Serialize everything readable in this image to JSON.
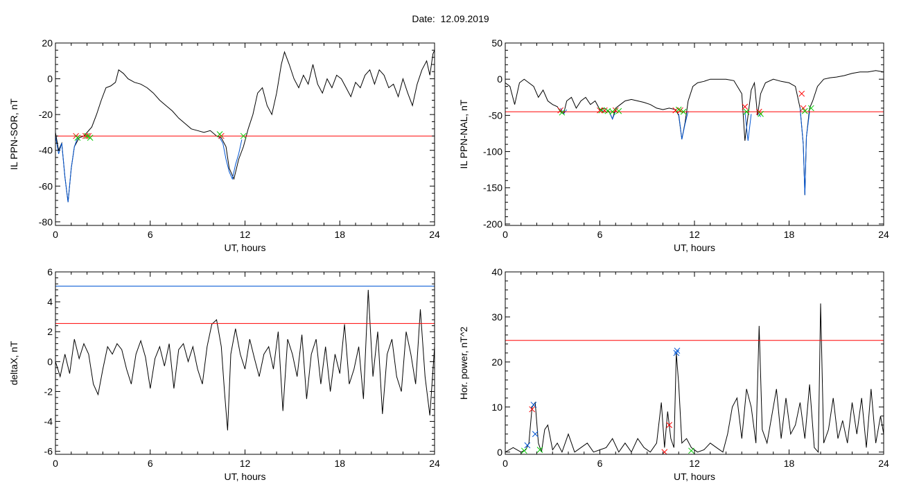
{
  "figure": {
    "title": "Date:  12.09.2019"
  },
  "chart_data": [
    {
      "type": "line",
      "ylabel": "IL PPN-SOR, nT",
      "xlabel": "UT, hours",
      "xlim": [
        0,
        24
      ],
      "ylim": [
        -82,
        20
      ],
      "xticks": [
        0,
        6,
        12,
        18,
        24
      ],
      "yticks": [
        -80,
        -60,
        -40,
        -20,
        0,
        20
      ],
      "series": [
        {
          "color": "#000000",
          "x": [
            0,
            0.2,
            0.4,
            0.6,
            0.8,
            1.0,
            1.2,
            1.5,
            1.8,
            2.0,
            2.3,
            2.6,
            2.9,
            3.2,
            3.5,
            3.8,
            4.0,
            4.3,
            4.6,
            5.0,
            5.4,
            5.8,
            6.2,
            6.6,
            7.0,
            7.4,
            7.8,
            8.2,
            8.6,
            9.0,
            9.4,
            9.8,
            10.2,
            10.5,
            10.8,
            11.0,
            11.3,
            11.6,
            11.9,
            12.2,
            12.5,
            12.8,
            13.1,
            13.4,
            13.7,
            14.0,
            14.3,
            14.5,
            14.8,
            15.1,
            15.4,
            15.7,
            16.0,
            16.3,
            16.6,
            16.9,
            17.2,
            17.5,
            17.8,
            18.1,
            18.4,
            18.7,
            19.0,
            19.3,
            19.6,
            19.9,
            20.2,
            20.5,
            20.8,
            21.1,
            21.4,
            21.7,
            22.0,
            22.3,
            22.6,
            22.9,
            23.2,
            23.5,
            23.7,
            23.9,
            24.0
          ],
          "y": [
            -30,
            -40,
            -36,
            -55,
            -69,
            -50,
            -38,
            -33,
            -32,
            -30,
            -27,
            -20,
            -12,
            -5,
            -4,
            -2,
            5,
            3,
            0,
            -2,
            -3,
            -5,
            -8,
            -12,
            -15,
            -18,
            -22,
            -25,
            -28,
            -29,
            -30,
            -29,
            -32,
            -33,
            -38,
            -50,
            -56,
            -45,
            -38,
            -28,
            -20,
            -8,
            -5,
            -15,
            -20,
            -8,
            8,
            15,
            8,
            0,
            -5,
            2,
            -3,
            8,
            -3,
            -8,
            0,
            -5,
            2,
            0,
            -5,
            -10,
            -2,
            -5,
            2,
            5,
            -3,
            5,
            2,
            -5,
            -3,
            -10,
            0,
            -8,
            -15,
            -3,
            5,
            10,
            2,
            14,
            16
          ]
        },
        {
          "color": "#0055d4",
          "x": [
            0,
            0.2,
            0.4,
            0.6,
            0.8,
            1.0,
            1.2,
            1.4
          ],
          "y": [
            -32,
            -42,
            -36,
            -55,
            -69,
            -50,
            -38,
            -33
          ]
        },
        {
          "color": "#0055d4",
          "x": [
            10.4,
            10.6,
            10.8,
            11.0,
            11.2,
            11.4,
            11.6,
            11.8
          ],
          "y": [
            -33,
            -36,
            -45,
            -52,
            -56,
            -48,
            -42,
            -34
          ]
        },
        {
          "color": "#ff0000",
          "x": [
            0,
            24
          ],
          "y": [
            -32,
            -32
          ]
        }
      ],
      "markers": [
        {
          "color": "#ff0000",
          "x": [
            1.3,
            1.9,
            2.1,
            10.5
          ],
          "y": [
            -32,
            -32,
            -32,
            -32
          ]
        },
        {
          "color": "#00cc00",
          "x": [
            1.4,
            2.0,
            2.2,
            10.4,
            11.9
          ],
          "y": [
            -33,
            -32,
            -33,
            -31,
            -32
          ]
        }
      ]
    },
    {
      "type": "line",
      "ylabel": "IL PPN-NAL, nT",
      "xlabel": "UT, hours",
      "xlim": [
        0,
        24
      ],
      "ylim": [
        -202,
        50
      ],
      "xticks": [
        0,
        6,
        12,
        18,
        24
      ],
      "yticks": [
        -200,
        -150,
        -100,
        -50,
        0,
        50
      ],
      "series": [
        {
          "color": "#000000",
          "x": [
            0,
            0.3,
            0.6,
            0.9,
            1.2,
            1.5,
            1.8,
            2.1,
            2.4,
            2.7,
            3.0,
            3.3,
            3.5,
            3.7,
            3.9,
            4.2,
            4.5,
            4.8,
            5.1,
            5.4,
            5.7,
            6.0,
            6.3,
            6.6,
            6.8,
            7.0,
            7.3,
            7.6,
            8.0,
            8.4,
            8.8,
            9.2,
            9.6,
            10.0,
            10.4,
            10.8,
            11.0,
            11.2,
            11.4,
            11.6,
            11.9,
            12.2,
            12.6,
            13.0,
            13.5,
            14.0,
            14.5,
            15.0,
            15.2,
            15.4,
            15.6,
            15.8,
            16.0,
            16.2,
            16.5,
            17.0,
            17.5,
            18.0,
            18.4,
            18.7,
            18.9,
            19.0,
            19.1,
            19.3,
            19.5,
            19.8,
            20.2,
            20.6,
            21.0,
            21.5,
            22.0,
            22.5,
            23.0,
            23.5,
            24.0
          ],
          "y": [
            -5,
            -10,
            -35,
            -5,
            0,
            -5,
            -10,
            -25,
            -15,
            -30,
            -35,
            -38,
            -45,
            -48,
            -30,
            -25,
            -40,
            -30,
            -25,
            -35,
            -30,
            -42,
            -40,
            -45,
            -55,
            -40,
            -35,
            -30,
            -28,
            -30,
            -32,
            -35,
            -40,
            -42,
            -40,
            -42,
            -50,
            -83,
            -60,
            -30,
            -10,
            -5,
            -3,
            0,
            0,
            0,
            -2,
            -20,
            -85,
            -50,
            -15,
            -5,
            -50,
            -20,
            -5,
            0,
            -3,
            -5,
            -10,
            -40,
            -90,
            -160,
            -80,
            -40,
            -30,
            -10,
            0,
            2,
            3,
            5,
            8,
            10,
            10,
            12,
            10
          ]
        },
        {
          "color": "#0055d4",
          "x": [
            3.5,
            3.7,
            3.9
          ],
          "y": [
            -40,
            -48,
            -42
          ]
        },
        {
          "color": "#0055d4",
          "x": [
            6.0,
            6.3,
            6.6,
            6.8,
            7.0
          ],
          "y": [
            -42,
            -45,
            -45,
            -55,
            -44
          ]
        },
        {
          "color": "#0055d4",
          "x": [
            11.0,
            11.2,
            11.4,
            11.6
          ],
          "y": [
            -48,
            -83,
            -62,
            -44
          ]
        },
        {
          "color": "#0055d4",
          "x": [
            15.2,
            15.4,
            15.6
          ],
          "y": [
            -45,
            -85,
            -48
          ]
        },
        {
          "color": "#0055d4",
          "x": [
            16.0,
            16.2
          ],
          "y": [
            -45,
            -52
          ]
        },
        {
          "color": "#0055d4",
          "x": [
            18.7,
            18.9,
            19.0,
            19.1,
            19.3
          ],
          "y": [
            -40,
            -90,
            -160,
            -80,
            -45
          ]
        },
        {
          "color": "#ff0000",
          "x": [
            0,
            24
          ],
          "y": [
            -45,
            -45
          ]
        }
      ],
      "markers": [
        {
          "color": "#ff0000",
          "x": [
            3.5,
            6.0,
            6.3,
            7.0,
            10.8,
            11.1,
            15.2,
            16.1,
            18.8,
            18.9
          ],
          "y": [
            -43,
            -43,
            -43,
            -43,
            -43,
            -43,
            -38,
            -45,
            -20,
            -40
          ]
        },
        {
          "color": "#00cc00",
          "x": [
            3.6,
            6.1,
            6.5,
            6.8,
            7.2,
            11.0,
            11.3,
            15.3,
            16.2,
            19.0,
            19.4
          ],
          "y": [
            -46,
            -43,
            -44,
            -45,
            -44,
            -42,
            -45,
            -45,
            -48,
            -44,
            -40
          ]
        }
      ]
    },
    {
      "type": "line",
      "ylabel": "deltaX, nT",
      "xlabel": "UT, hours",
      "xlim": [
        0,
        24
      ],
      "ylim": [
        -6.2,
        6
      ],
      "xticks": [
        0,
        6,
        12,
        18,
        24
      ],
      "yticks": [
        -6,
        -4,
        -2,
        0,
        2,
        4,
        6
      ],
      "series": [
        {
          "color": "#000000",
          "x": [
            0,
            0.3,
            0.6,
            0.9,
            1.2,
            1.5,
            1.8,
            2.1,
            2.4,
            2.7,
            3.0,
            3.3,
            3.6,
            3.9,
            4.2,
            4.5,
            4.8,
            5.1,
            5.4,
            5.7,
            6.0,
            6.3,
            6.6,
            6.9,
            7.2,
            7.5,
            7.8,
            8.1,
            8.4,
            8.7,
            9.0,
            9.3,
            9.6,
            9.9,
            10.2,
            10.5,
            10.7,
            10.9,
            11.1,
            11.4,
            11.7,
            12.0,
            12.3,
            12.6,
            12.9,
            13.2,
            13.5,
            13.8,
            14.1,
            14.4,
            14.7,
            15.0,
            15.3,
            15.6,
            15.9,
            16.2,
            16.5,
            16.8,
            17.1,
            17.4,
            17.7,
            18.0,
            18.3,
            18.6,
            18.9,
            19.2,
            19.5,
            19.8,
            20.1,
            20.4,
            20.7,
            21.0,
            21.3,
            21.6,
            21.9,
            22.2,
            22.5,
            22.8,
            23.1,
            23.4,
            23.7,
            24.0
          ],
          "y": [
            0,
            -1,
            0.5,
            -0.8,
            1.5,
            0.2,
            1.2,
            0.5,
            -1.5,
            -2.2,
            -0.5,
            1,
            0.5,
            1.2,
            0.8,
            -0.5,
            -1.5,
            0.5,
            1.4,
            0.3,
            -1.8,
            0.2,
            1,
            -0.3,
            1.2,
            -1.8,
            0.8,
            1.2,
            0,
            1,
            -0.5,
            -1.5,
            1,
            2.5,
            2.8,
            1,
            -2,
            -4.6,
            0.5,
            2.2,
            0.5,
            -0.5,
            1.5,
            0.2,
            -1,
            0.5,
            1,
            -0.5,
            2,
            -3.3,
            1.5,
            0.5,
            -1,
            1.8,
            -2.5,
            0.5,
            1.5,
            -1.5,
            1,
            -2,
            0.5,
            -0.8,
            2.5,
            -1.5,
            -0.5,
            1,
            -2.5,
            4.8,
            -1,
            2,
            -3.5,
            0.5,
            1.5,
            -1,
            -2,
            2,
            0.5,
            -1.5,
            3.5,
            -1,
            -3.6,
            1
          ]
        },
        {
          "color": "#0055d4",
          "x": [
            0,
            24
          ],
          "y": [
            5.05,
            5.05
          ]
        },
        {
          "color": "#ff0000",
          "x": [
            0,
            24
          ],
          "y": [
            2.55,
            2.55
          ]
        }
      ],
      "markers": []
    },
    {
      "type": "line",
      "ylabel": "Hor. power, nT^2",
      "xlabel": "UT, hours",
      "xlim": [
        0,
        24
      ],
      "ylim": [
        -0.5,
        40
      ],
      "xticks": [
        0,
        6,
        12,
        18,
        24
      ],
      "yticks": [
        0,
        10,
        20,
        30,
        40
      ],
      "series": [
        {
          "color": "#000000",
          "x": [
            0,
            0.5,
            1.0,
            1.3,
            1.5,
            1.7,
            1.9,
            2.1,
            2.3,
            2.5,
            2.7,
            3.0,
            3.3,
            3.6,
            4.0,
            4.4,
            4.8,
            5.2,
            5.6,
            6.0,
            6.4,
            6.8,
            7.2,
            7.6,
            8.0,
            8.4,
            8.8,
            9.2,
            9.6,
            9.9,
            10.1,
            10.3,
            10.5,
            10.7,
            10.85,
            11.0,
            11.2,
            11.5,
            11.8,
            12.2,
            12.6,
            13.0,
            13.4,
            13.8,
            14.1,
            14.4,
            14.7,
            15.0,
            15.3,
            15.6,
            15.9,
            16.1,
            16.3,
            16.6,
            16.9,
            17.2,
            17.5,
            17.8,
            18.1,
            18.4,
            18.7,
            19.0,
            19.3,
            19.6,
            19.85,
            20.0,
            20.2,
            20.5,
            20.8,
            21.1,
            21.4,
            21.7,
            22.0,
            22.3,
            22.6,
            22.9,
            23.2,
            23.5,
            23.8,
            24.0
          ],
          "y": [
            0,
            1,
            0,
            0.5,
            2,
            10,
            11,
            2,
            0,
            5,
            6,
            0.5,
            2,
            0,
            4,
            0,
            1,
            2,
            0,
            0.5,
            1,
            3,
            0,
            2,
            0,
            3,
            1,
            0,
            2,
            11,
            1,
            9,
            3,
            1,
            22,
            15,
            2,
            3,
            1,
            0,
            0.5,
            2,
            1,
            0,
            4,
            10,
            12,
            3,
            14,
            10,
            2,
            28,
            5,
            2,
            8,
            14,
            3,
            12,
            4,
            6,
            11,
            3,
            15,
            1,
            0,
            33,
            2,
            5,
            12,
            3,
            7,
            2,
            11,
            4,
            12,
            1,
            14,
            2,
            8,
            4
          ]
        },
        {
          "color": "#ff0000",
          "x": [
            0,
            24
          ],
          "y": [
            24.8,
            24.8
          ]
        }
      ],
      "markers": [
        {
          "color": "#ff0000",
          "x": [
            1.7,
            10.1,
            10.4
          ],
          "y": [
            9.5,
            0,
            6
          ]
        },
        {
          "color": "#0055d4",
          "x": [
            1.4,
            1.8,
            1.9,
            10.85,
            10.9
          ],
          "y": [
            1.5,
            10.5,
            4,
            22,
            22.5
          ]
        },
        {
          "color": "#00cc00",
          "x": [
            1.2,
            2.2,
            11.8
          ],
          "y": [
            0.3,
            0.5,
            0.3
          ]
        }
      ]
    }
  ]
}
